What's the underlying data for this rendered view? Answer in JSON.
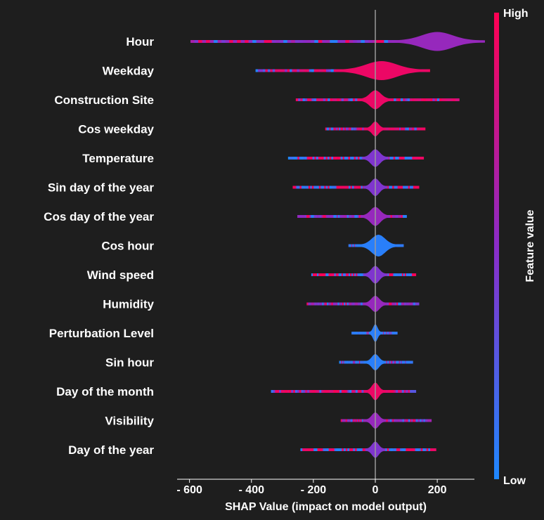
{
  "chart_data": {
    "type": "violin",
    "xlabel": "SHAP Value (impact on model output)",
    "xlim": [
      -640,
      320
    ],
    "xticks": [
      -600,
      -400,
      -200,
      0,
      200
    ],
    "xtick_labels": [
      "- 600",
      "- 400",
      "- 200",
      "0",
      "200"
    ],
    "colorbar": {
      "label": "Feature value",
      "high": "High",
      "low": "Low",
      "high_color": "#ff0052",
      "mid_color": "#8a2cc8",
      "low_color": "#1e88ff"
    },
    "features": [
      {
        "name": "Hour",
        "min": -590,
        "max": 285,
        "peak": 200,
        "peak_width": 12,
        "half_spread": 70,
        "dominant": "mid"
      },
      {
        "name": "Weekday",
        "min": -380,
        "max": 170,
        "peak": 20,
        "peak_width": 12,
        "half_spread": 70,
        "dominant": "high"
      },
      {
        "name": "Construction Site",
        "min": -250,
        "max": 265,
        "peak": 0,
        "peak_width": 12,
        "half_spread": 25,
        "dominant": "high"
      },
      {
        "name": "Cos weekday",
        "min": -155,
        "max": 155,
        "peak": 0,
        "peak_width": 9,
        "half_spread": 15,
        "dominant": "high"
      },
      {
        "name": "Temperature",
        "min": -275,
        "max": 150,
        "peak": 0,
        "peak_width": 11,
        "half_spread": 20,
        "dominant": "mixed"
      },
      {
        "name": "Sin day of the year",
        "min": -260,
        "max": 135,
        "peak": 0,
        "peak_width": 11,
        "half_spread": 18,
        "dominant": "mixed"
      },
      {
        "name": "Cos day of the year",
        "min": -245,
        "max": 95,
        "peak": 0,
        "peak_width": 12,
        "half_spread": 22,
        "dominant": "mid"
      },
      {
        "name": "Cos hour",
        "min": -80,
        "max": 85,
        "peak": 10,
        "peak_width": 14,
        "half_spread": 30,
        "dominant": "low"
      },
      {
        "name": "Wind speed",
        "min": -200,
        "max": 125,
        "peak": 0,
        "peak_width": 11,
        "half_spread": 18,
        "dominant": "mixed"
      },
      {
        "name": "Humidity",
        "min": -215,
        "max": 135,
        "peak": 0,
        "peak_width": 10,
        "half_spread": 18,
        "dominant": "mid"
      },
      {
        "name": "Perturbation Level",
        "min": -70,
        "max": 65,
        "peak": 0,
        "peak_width": 11,
        "half_spread": 10,
        "dominant": "low"
      },
      {
        "name": "Sin hour",
        "min": -110,
        "max": 115,
        "peak": 0,
        "peak_width": 10,
        "half_spread": 16,
        "dominant": "low"
      },
      {
        "name": "Day of the month",
        "min": -330,
        "max": 125,
        "peak": 0,
        "peak_width": 11,
        "half_spread": 15,
        "dominant": "high"
      },
      {
        "name": "Visibility",
        "min": -105,
        "max": 175,
        "peak": 0,
        "peak_width": 10,
        "half_spread": 16,
        "dominant": "mid"
      },
      {
        "name": "Day of the year",
        "min": -235,
        "max": 190,
        "peak": 0,
        "peak_width": 10,
        "half_spread": 15,
        "dominant": "mixed"
      }
    ]
  }
}
